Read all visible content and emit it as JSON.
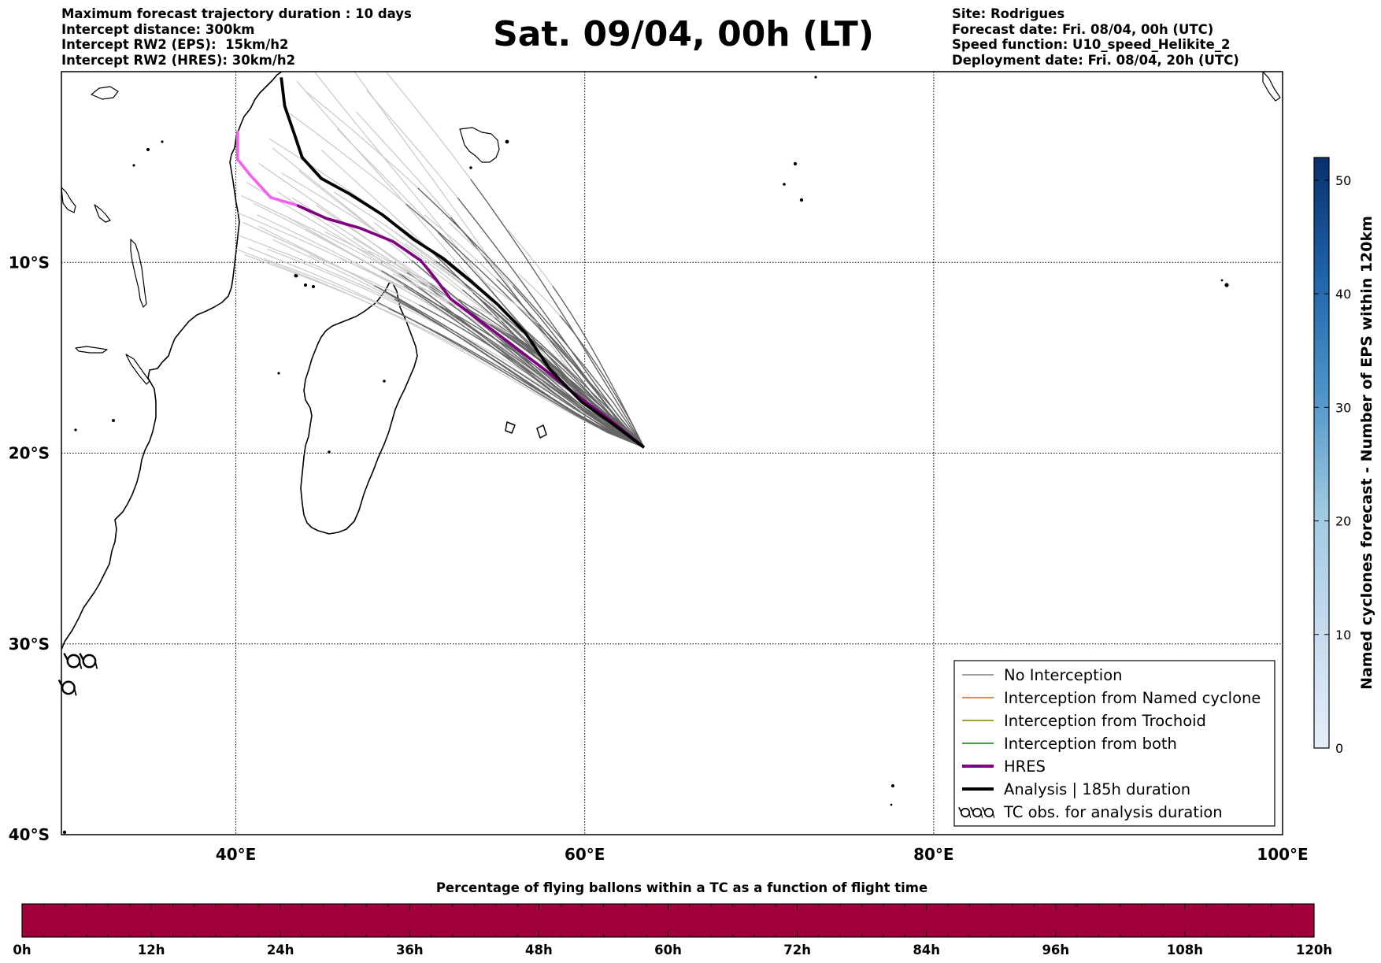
{
  "header": {
    "left": [
      "Maximum forecast trajectory duration : 10 days",
      "Intercept distance: 300km",
      "Intercept RW2 (EPS):  15km/h2",
      "Intercept RW2 (HRES): 30km/h2"
    ],
    "title": "Sat. 09/04, 00h (LT)",
    "right": [
      "Site: Rodrigues",
      "Forecast date: Fri. 08/04, 00h (UTC)",
      "Speed function: U10_speed_Helikite_2",
      "Deployment date: Fri. 08/04, 20h (UTC)"
    ]
  },
  "map": {
    "lon_range": [
      30,
      100
    ],
    "lat_range": [
      -40,
      0
    ],
    "lon_ticks": [
      {
        "v": 40,
        "label": "40°E"
      },
      {
        "v": 60,
        "label": "60°E"
      },
      {
        "v": 80,
        "label": "80°E"
      },
      {
        "v": 100,
        "label": "100°E"
      }
    ],
    "lat_ticks": [
      {
        "v": -10,
        "label": "10°S"
      },
      {
        "v": -20,
        "label": "20°S"
      },
      {
        "v": -30,
        "label": "30°S"
      },
      {
        "v": -40,
        "label": "40°S"
      }
    ],
    "grid": true,
    "launch_site": {
      "lon": 63.4,
      "lat": -19.7
    },
    "tc_observations": [
      {
        "lon": 30.7,
        "lat": -30.9
      },
      {
        "lon": 31.6,
        "lat": -30.9
      },
      {
        "lon": 30.4,
        "lat": -32.3
      }
    ]
  },
  "trajectories": {
    "hres": [
      [
        63.4,
        -19.7
      ],
      [
        61.5,
        -18.3
      ],
      [
        59.6,
        -17.0
      ],
      [
        57.8,
        -15.7
      ],
      [
        55.8,
        -14.3
      ],
      [
        53.9,
        -13.0
      ],
      [
        52.3,
        -11.9
      ],
      [
        51.4,
        -10.8
      ],
      [
        50.6,
        -9.9
      ],
      [
        49.0,
        -8.9
      ],
      [
        47.1,
        -8.2
      ],
      [
        45.2,
        -7.7
      ],
      [
        43.5,
        -7.0
      ],
      [
        42.0,
        -6.6
      ],
      [
        40.8,
        -5.4
      ],
      [
        40.1,
        -4.6
      ],
      [
        40.1,
        -3.1
      ]
    ],
    "hres_pink_from_index": 12,
    "analysis": [
      [
        63.4,
        -19.7
      ],
      [
        61.5,
        -18.4
      ],
      [
        59.8,
        -17.3
      ],
      [
        58.0,
        -15.6
      ],
      [
        56.6,
        -13.7
      ],
      [
        55.0,
        -12.2
      ],
      [
        53.5,
        -11.0
      ],
      [
        51.9,
        -9.8
      ],
      [
        50.2,
        -8.8
      ],
      [
        48.4,
        -7.5
      ],
      [
        46.5,
        -6.4
      ],
      [
        44.9,
        -5.6
      ],
      [
        43.8,
        -4.5
      ],
      [
        43.4,
        -3.4
      ],
      [
        42.8,
        -1.8
      ],
      [
        42.6,
        -0.3
      ]
    ],
    "eps_end_points": [
      [
        43.2,
        -6.6
      ],
      [
        44.6,
        -7.0
      ],
      [
        42.4,
        -6.3
      ],
      [
        41.3,
        -8.1
      ],
      [
        42.1,
        -8.8
      ],
      [
        40.7,
        -9.2
      ],
      [
        41.6,
        -9.8
      ],
      [
        44.2,
        -9.6
      ],
      [
        46.0,
        -9.8
      ],
      [
        45.1,
        -8.4
      ],
      [
        48.3,
        -10.1
      ],
      [
        47.6,
        -9.4
      ],
      [
        49.0,
        -10.6
      ],
      [
        50.3,
        -11.2
      ],
      [
        51.8,
        -11.9
      ],
      [
        52.7,
        -12.4
      ],
      [
        46.7,
        -8.7
      ],
      [
        47.9,
        -7.9
      ],
      [
        43.6,
        -5.2
      ],
      [
        44.9,
        -4.1
      ],
      [
        45.8,
        -3.0
      ],
      [
        46.9,
        -2.1
      ],
      [
        47.5,
        -1.0
      ],
      [
        48.6,
        0.0
      ],
      [
        43.1,
        -2.2
      ],
      [
        44.1,
        -1.1
      ],
      [
        41.9,
        -3.5
      ],
      [
        45.6,
        -6.3
      ],
      [
        50.8,
        -7.5
      ],
      [
        52.2,
        -7.9
      ],
      [
        53.6,
        -12.3
      ],
      [
        54.4,
        -11.1
      ],
      [
        49.7,
        -9.0
      ],
      [
        48.8,
        -8.2
      ],
      [
        42.9,
        -7.6
      ],
      [
        44.0,
        -8.3
      ],
      [
        40.4,
        -7.9
      ],
      [
        41.0,
        -6.9
      ],
      [
        55.6,
        -8.3
      ],
      [
        56.2,
        -10.6
      ]
    ],
    "eps_ghost_end_points": [
      [
        40.3,
        -6.5
      ],
      [
        40.1,
        -7.4
      ],
      [
        40.2,
        -8.6
      ],
      [
        41.2,
        -7.5
      ],
      [
        40.6,
        -5.8
      ],
      [
        41.3,
        -4.8
      ],
      [
        42.1,
        -4.0
      ],
      [
        43.5,
        -0.5
      ],
      [
        44.5,
        0.0
      ],
      [
        46.8,
        0.0
      ],
      [
        40.0,
        -9.3
      ],
      [
        40.5,
        -9.6
      ],
      [
        41.8,
        -9.3
      ],
      [
        42.6,
        -5.3
      ]
    ]
  },
  "legend": {
    "items": [
      {
        "label": "No Interception",
        "color": "#7f7f7f",
        "width": 1.4,
        "kind": "line"
      },
      {
        "label": "Interception from Named cyclone",
        "color": "#ff5500",
        "width": 1.4,
        "kind": "line"
      },
      {
        "label": "Interception from Trochoid",
        "color": "#808000",
        "width": 1.4,
        "kind": "line"
      },
      {
        "label": "Interception from both",
        "color": "#008000",
        "width": 1.4,
        "kind": "line"
      },
      {
        "label": "HRES",
        "color": "#800080",
        "width": 4,
        "kind": "line"
      },
      {
        "label": "Analysis | 185h duration",
        "color": "#000000",
        "width": 4,
        "kind": "line"
      },
      {
        "label": "TC obs. for analysis duration",
        "color": "#000000",
        "width": 0,
        "kind": "tc"
      }
    ]
  },
  "colorbar_right": {
    "label": "Named cyclones forecast - Number of EPS within 120km",
    "ticks": [
      0,
      10,
      20,
      30,
      40,
      50
    ],
    "max": 52,
    "color_low": "#e4eefa",
    "color_high": "#08306b"
  },
  "bottom_bar": {
    "title": "Percentage of flying ballons within a TC as a function of flight time",
    "color": "#a0003c",
    "labels": [
      "0h",
      "12h",
      "24h",
      "36h",
      "48h",
      "60h",
      "72h",
      "84h",
      "96h",
      "108h",
      "120h"
    ]
  },
  "colors": {
    "hres_pink": "#f560f0",
    "hres_purple": "#800080",
    "eps_dark": "#666666",
    "eps_light": "#cccccc",
    "coast": "#000000"
  }
}
